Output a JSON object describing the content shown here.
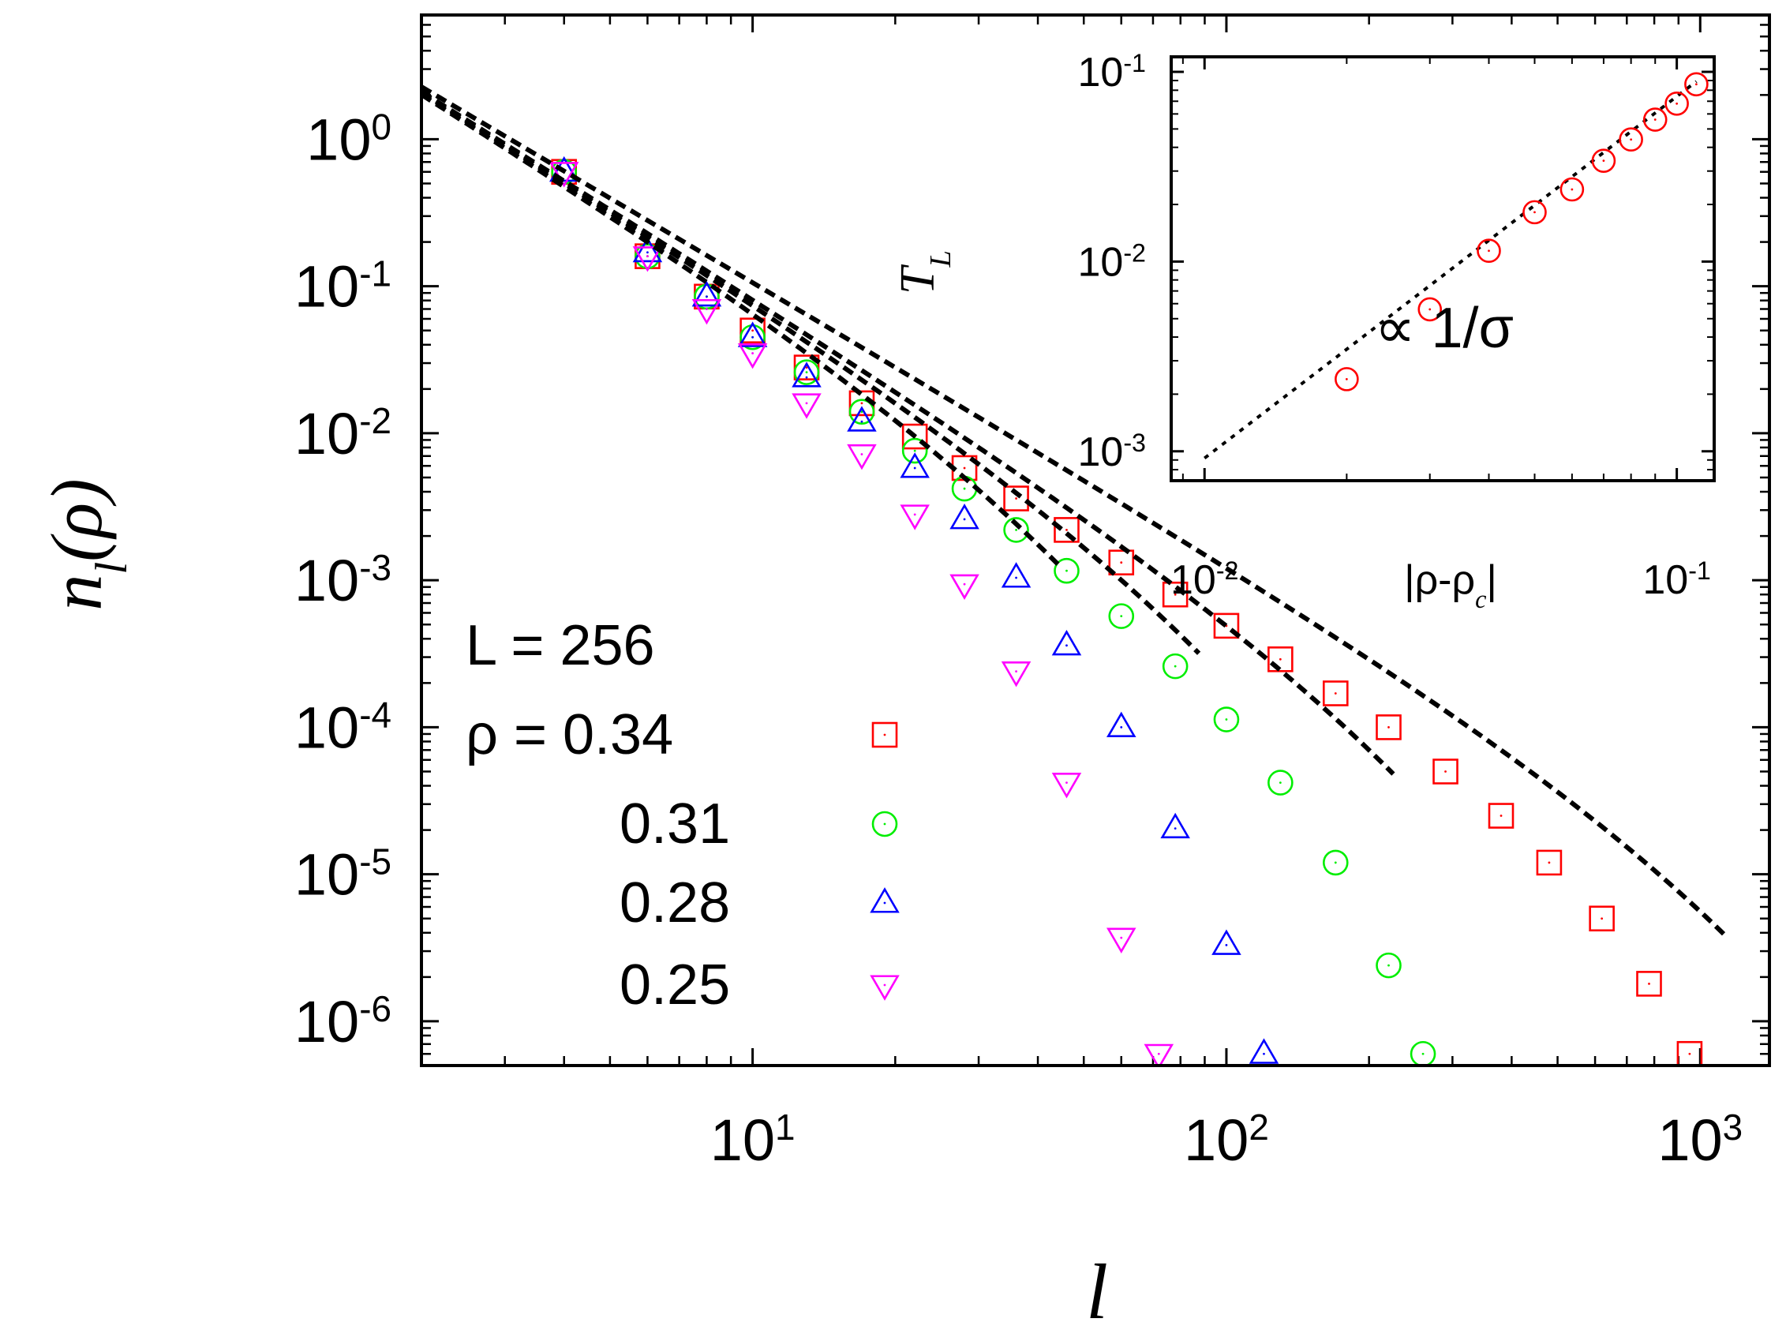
{
  "chart_data": [
    {
      "id": "main",
      "type": "scatter",
      "xscale": "log",
      "yscale": "log",
      "xlim": [
        2,
        1400
      ],
      "ylim": [
        5e-07,
        7
      ],
      "xlabel_main": "l",
      "ylabel_main": "n",
      "ylabel_sub": "l",
      "ylabel_tail": "(ρ)",
      "x_ticks": [
        {
          "value": 10,
          "base": "10",
          "exp": "1"
        },
        {
          "value": 100,
          "base": "10",
          "exp": "2"
        },
        {
          "value": 1000,
          "base": "10",
          "exp": "3"
        }
      ],
      "y_ticks": [
        {
          "value": 1,
          "base": "10",
          "exp": "0"
        },
        {
          "value": 0.1,
          "base": "10",
          "exp": "-1"
        },
        {
          "value": 0.01,
          "base": "10",
          "exp": "-2"
        },
        {
          "value": 0.001,
          "base": "10",
          "exp": "-3"
        },
        {
          "value": 0.0001,
          "base": "10",
          "exp": "-4"
        },
        {
          "value": 1e-05,
          "base": "10",
          "exp": "-5"
        },
        {
          "value": 1e-06,
          "base": "10",
          "exp": "-6"
        }
      ],
      "legend": {
        "title_line": "L = 256",
        "prefix": "ρ = ",
        "placement": "lower-left"
      },
      "series": [
        {
          "name": "0.34",
          "marker": "square",
          "color": "#ff0000",
          "exponent": 1.9,
          "cutoff": 900,
          "x": [
            4,
            6,
            8,
            10,
            13,
            17,
            22,
            28,
            36,
            46,
            60,
            78,
            100,
            130,
            170,
            220,
            290,
            380,
            480,
            620,
            780,
            950
          ],
          "y": [
            0.6,
            0.16,
            0.085,
            0.05,
            0.028,
            0.016,
            0.0095,
            0.0058,
            0.0036,
            0.0022,
            0.00132,
            0.0008,
            0.00049,
            0.00029,
            0.00017,
            0.0001,
            5e-05,
            2.5e-05,
            1.2e-05,
            5e-06,
            1.8e-06,
            6e-07
          ]
        },
        {
          "name": "0.31",
          "marker": "circle",
          "color": "#00ee00",
          "exponent": 2.0,
          "cutoff": 180,
          "x": [
            4,
            6,
            8,
            10,
            13,
            17,
            22,
            28,
            36,
            46,
            60,
            78,
            100,
            130,
            170,
            220,
            260
          ],
          "y": [
            0.6,
            0.16,
            0.085,
            0.045,
            0.026,
            0.014,
            0.0076,
            0.0042,
            0.0022,
            0.00116,
            0.00057,
            0.00026,
            0.000113,
            4.2e-05,
            1.2e-05,
            2.4e-06,
            6e-07
          ]
        },
        {
          "name": "0.28",
          "marker": "triangle-up",
          "color": "#0000ff",
          "exponent": 2.0,
          "cutoff": 70,
          "x": [
            4,
            6,
            8,
            10,
            13,
            17,
            22,
            28,
            36,
            46,
            60,
            78,
            100,
            120
          ],
          "y": [
            0.6,
            0.17,
            0.085,
            0.045,
            0.024,
            0.012,
            0.0058,
            0.0026,
            0.00104,
            0.00036,
            0.0001,
            2.05e-05,
            3.3e-06,
            6e-07
          ]
        },
        {
          "name": "0.25",
          "marker": "triangle-down",
          "color": "#ff00ff",
          "exponent": 2.0,
          "cutoff": 36,
          "x": [
            4,
            6,
            8,
            10,
            13,
            17,
            22,
            28,
            36,
            46,
            60,
            72
          ],
          "y": [
            0.6,
            0.16,
            0.07,
            0.035,
            0.016,
            0.0072,
            0.0028,
            0.00094,
            0.00024,
            4.2e-05,
            3.7e-06,
            6e-07
          ]
        }
      ],
      "fits": {
        "style": "dashed",
        "color": "#000000",
        "amplitude": 8.5
      }
    },
    {
      "id": "inset",
      "type": "scatter",
      "xscale": "log",
      "yscale": "log",
      "xlim": [
        0.0085,
        0.12
      ],
      "ylim": [
        0.0007,
        0.12
      ],
      "xlabel": "|ρ-ρ",
      "xlabel_sub": "c",
      "xlabel_tail": "|",
      "ylabel": "T",
      "ylabel_sub": "L",
      "annotation": "∝ 1/σ",
      "x_ticks": [
        {
          "value": 0.01,
          "base": "10",
          "exp": "-2"
        },
        {
          "value": 0.1,
          "base": "10",
          "exp": "-1"
        }
      ],
      "y_ticks": [
        {
          "value": 0.1,
          "base": "10",
          "exp": "-1"
        },
        {
          "value": 0.01,
          "base": "10",
          "exp": "-2"
        },
        {
          "value": 0.001,
          "base": "10",
          "exp": "-3"
        }
      ],
      "series": [
        {
          "name": "T_L",
          "marker": "circle",
          "color": "#ff0000",
          "x": [
            0.02,
            0.03,
            0.04,
            0.05,
            0.06,
            0.07,
            0.08,
            0.09,
            0.1,
            0.11
          ],
          "y": [
            0.0024,
            0.0056,
            0.0114,
            0.0182,
            0.024,
            0.034,
            0.044,
            0.056,
            0.068,
            0.086
          ]
        }
      ],
      "fit": {
        "style": "dotted",
        "color": "#000000",
        "x": [
          0.01,
          0.11
        ],
        "y": [
          0.00092,
          0.089
        ]
      }
    }
  ]
}
